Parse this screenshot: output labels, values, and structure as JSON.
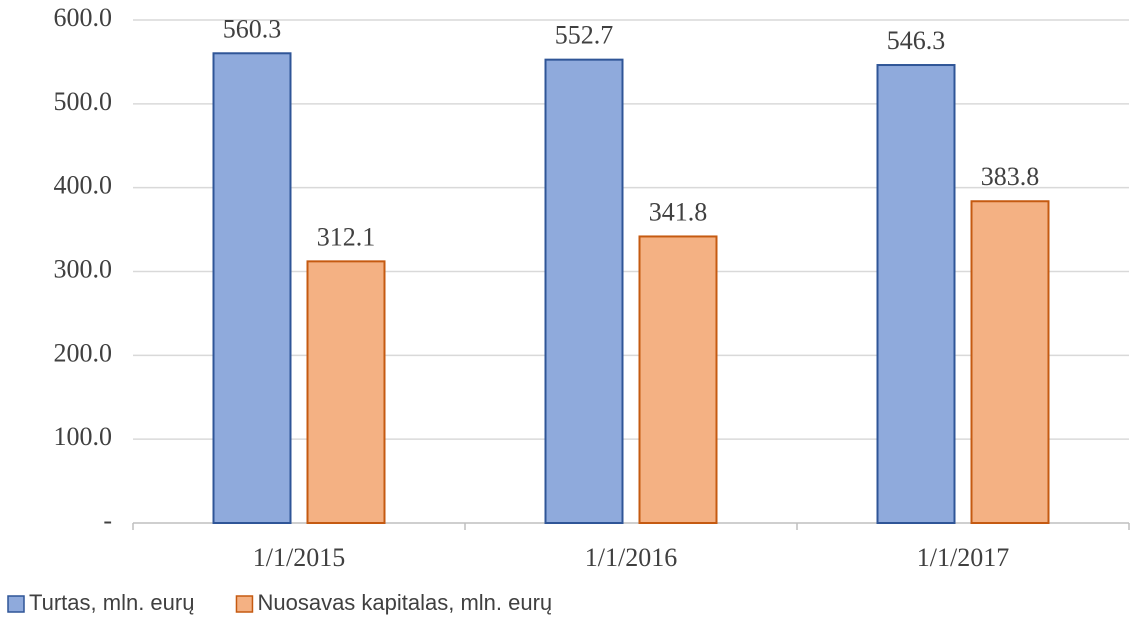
{
  "chart_data": {
    "type": "bar",
    "categories": [
      "1/1/2015",
      "1/1/2016",
      "1/1/2017"
    ],
    "series": [
      {
        "name": "Turtas, mln. eurų",
        "color": "#8faadc",
        "edge": "#2f5597",
        "values": [
          560.3,
          552.7,
          546.3
        ]
      },
      {
        "name": "Nuosavas kapitalas, mln. eurų",
        "color": "#f4b183",
        "edge": "#c55a11",
        "values": [
          312.1,
          341.8,
          383.8
        ]
      }
    ],
    "ylim": [
      0,
      600
    ],
    "yticks": [
      {
        "value": 0,
        "label": "-"
      },
      {
        "value": 100,
        "label": "100.0"
      },
      {
        "value": 200,
        "label": "200.0"
      },
      {
        "value": 300,
        "label": "300.0"
      },
      {
        "value": 400,
        "label": "400.0"
      },
      {
        "value": 500,
        "label": "500.0"
      },
      {
        "value": 600,
        "label": "600.0"
      }
    ],
    "grid": true,
    "legend": "bottom-left"
  }
}
